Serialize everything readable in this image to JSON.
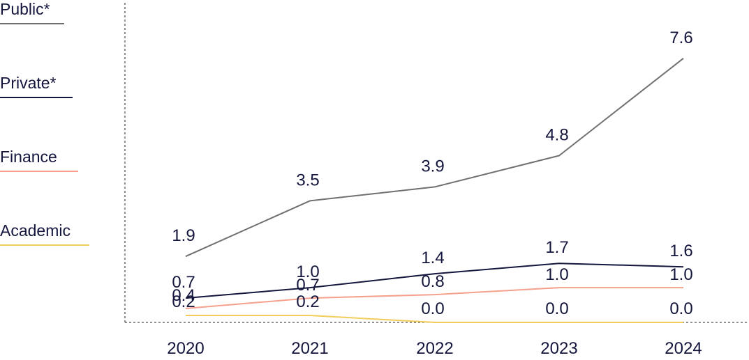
{
  "chart_data": {
    "type": "line",
    "categories": [
      "2020",
      "2021",
      "2022",
      "2023",
      "2024"
    ],
    "series": [
      {
        "name": "Public*",
        "values": [
          1.9,
          3.5,
          3.9,
          4.8,
          7.6
        ],
        "labels": [
          "1.9",
          "3.5",
          "3.9",
          "4.8",
          "7.6"
        ],
        "color": "#707070"
      },
      {
        "name": "Private*",
        "values": [
          0.7,
          1.0,
          1.4,
          1.7,
          1.6
        ],
        "labels": [
          "0.7",
          "1.0",
          "1.4",
          "1.7",
          "1.6"
        ],
        "color": "#14163d"
      },
      {
        "name": "Finance",
        "values": [
          0.4,
          0.7,
          0.8,
          1.0,
          1.0
        ],
        "labels": [
          "0.4",
          "0.7",
          "0.8",
          "1.0",
          "1.0"
        ],
        "color": "#f4a08c"
      },
      {
        "name": "Academic",
        "values": [
          0.2,
          0.2,
          0.0,
          0.0,
          0.0
        ],
        "labels": [
          "0.2",
          "0.2",
          "0.0",
          "0.0",
          "0.0"
        ],
        "color": "#f2cd5c"
      }
    ],
    "ylim": [
      0,
      8
    ],
    "grid": false,
    "legend_position": "left",
    "text_color": "#14163d"
  }
}
